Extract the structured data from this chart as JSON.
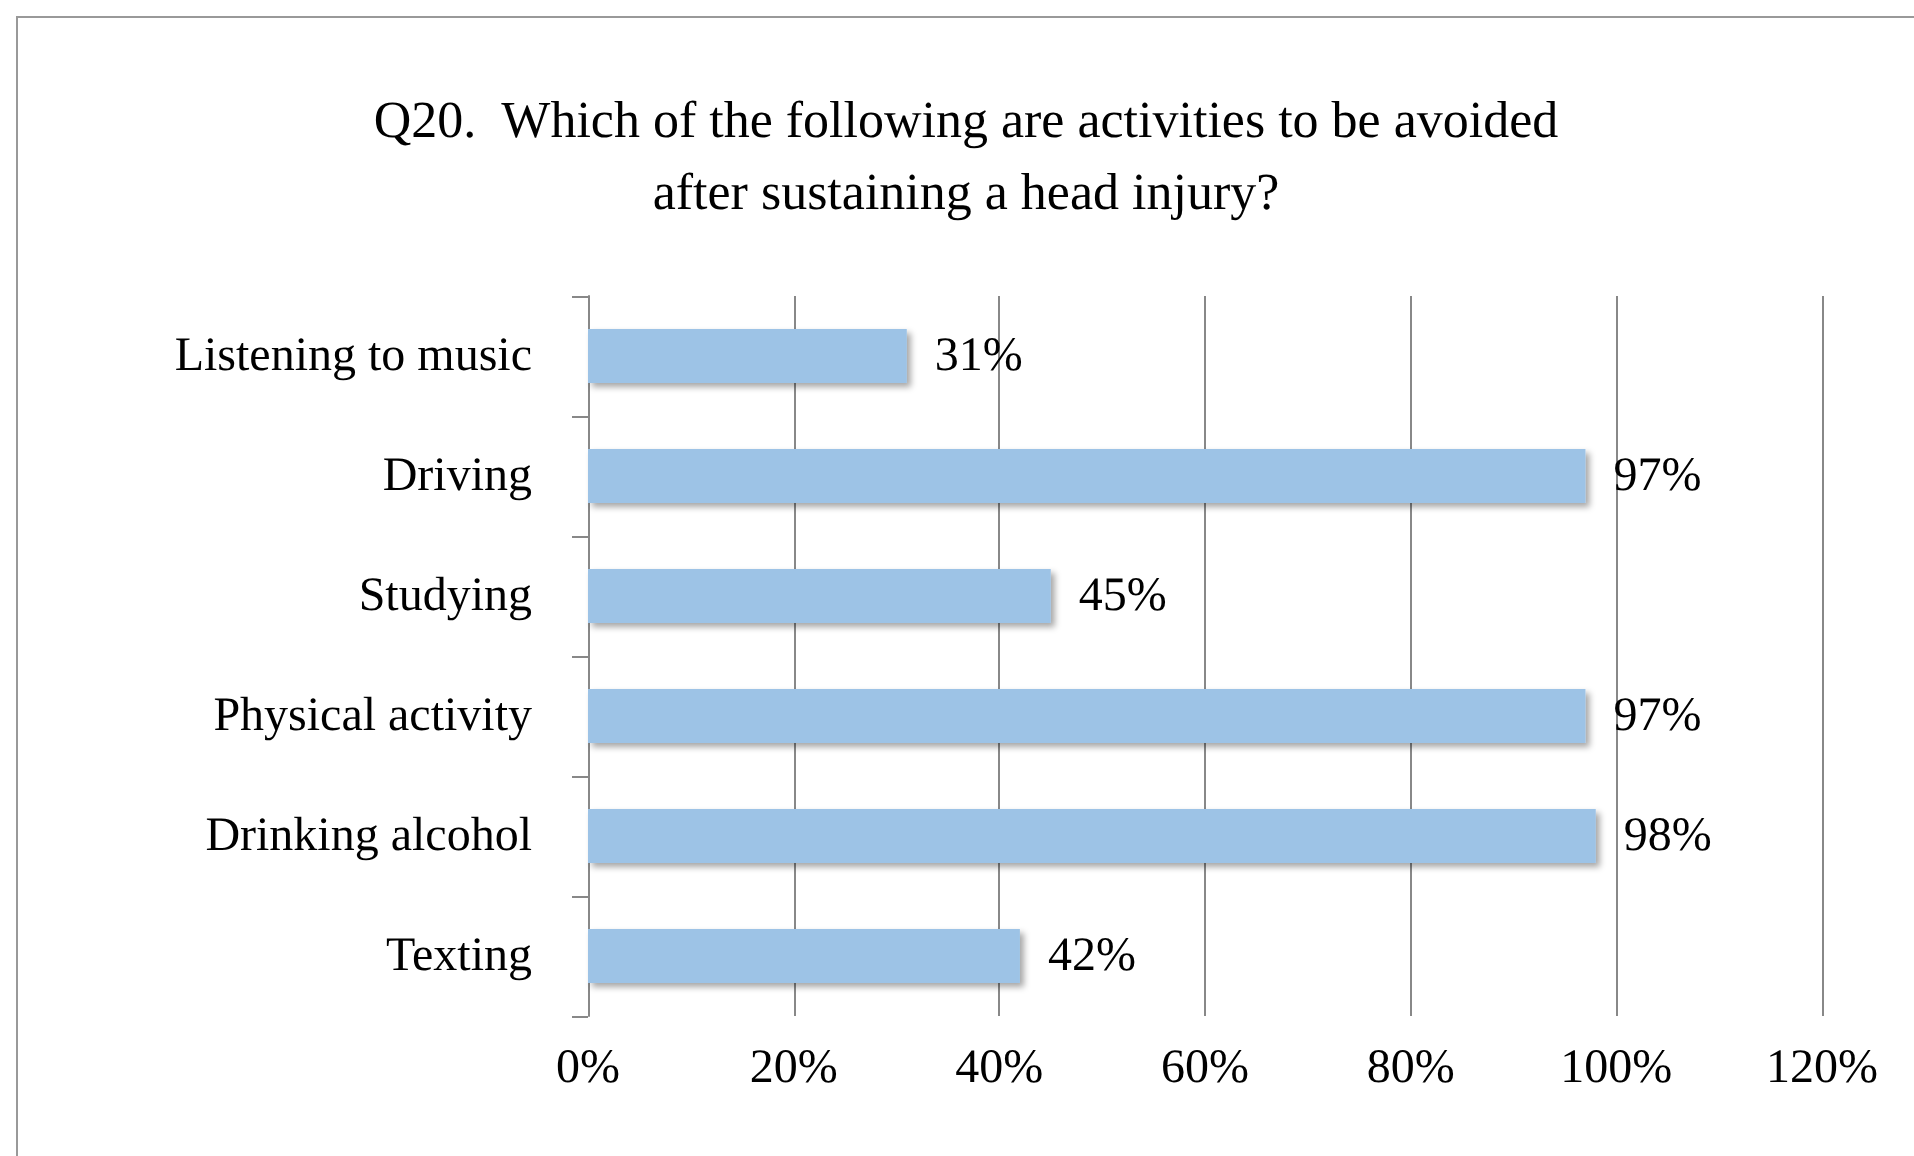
{
  "chart_data": {
    "type": "bar",
    "orientation": "horizontal",
    "title": "Q20.  Which of the following are activities to be avoided\nafter sustaining a head injury?",
    "categories": [
      "Listening to music",
      "Driving",
      "Studying",
      "Physical activity",
      "Drinking alcohol",
      "Texting"
    ],
    "values": [
      31,
      97,
      45,
      97,
      98,
      42
    ],
    "value_labels": [
      "31%",
      "97%",
      "45%",
      "97%",
      "98%",
      "42%"
    ],
    "color": "#9dc3e6",
    "xlim": [
      0,
      120
    ],
    "xticks": [
      {
        "value": 0,
        "label": "0%"
      },
      {
        "value": 20,
        "label": "20%"
      },
      {
        "value": 40,
        "label": "40%"
      },
      {
        "value": 60,
        "label": "60%"
      },
      {
        "value": 80,
        "label": "80%"
      },
      {
        "value": 100,
        "label": "100%"
      },
      {
        "value": 120,
        "label": "120%"
      }
    ],
    "grid": "x"
  }
}
